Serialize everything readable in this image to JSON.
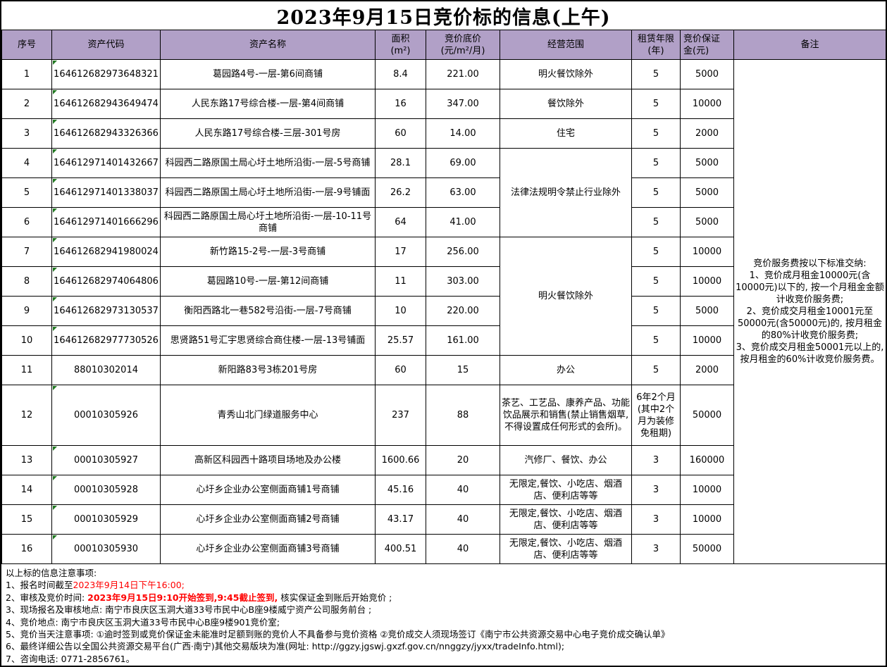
{
  "title": "2023年9月15日竞价标的信息(上午)",
  "colors": {
    "header_bg": "#b1a0c7",
    "grid_line": "#000000",
    "flag_green": "#217821",
    "highlight_red": "#ff0000"
  },
  "table": {
    "headers": [
      "序号",
      "资产代码",
      "资产名称",
      "面积\n(m²)",
      "竞价底价\n(元/m²/月)",
      "经营范围",
      "租赁年限\n(年)",
      "竞价保证\n金(元)",
      "备注"
    ],
    "rows": [
      {
        "no": "1",
        "code": "164612682973648321",
        "code_flag": true,
        "name": "葛园路4号-一层-第6间商铺",
        "area": "8.4",
        "price": "221.00",
        "scope": "明火餐饮除外",
        "scope_span": 1,
        "term": "5",
        "deposit": "5000",
        "tall": false
      },
      {
        "no": "2",
        "code": "164612682943649474",
        "code_flag": true,
        "name": "人民东路17号综合楼-一层-第4间商铺",
        "area": "16",
        "price": "347.00",
        "scope": "餐饮除外",
        "scope_span": 1,
        "term": "5",
        "deposit": "10000",
        "tall": false
      },
      {
        "no": "3",
        "code": "164612682943326366",
        "code_flag": true,
        "name": "人民东路17号综合楼-三层-301号房",
        "area": "60",
        "price": "14.00",
        "scope": "住宅",
        "scope_span": 1,
        "term": "5",
        "deposit": "2000",
        "tall": false
      },
      {
        "no": "4",
        "code": "164612971401432667",
        "code_flag": true,
        "name": "科园西二路原国土局心圩土地所沿街-一层-5号商铺",
        "area": "28.1",
        "price": "69.00",
        "scope": "法律法规明令禁止行业除外",
        "scope_span": 3,
        "term": "5",
        "deposit": "5000",
        "tall": false
      },
      {
        "no": "5",
        "code": "164612971401338037",
        "code_flag": true,
        "name": "科园西二路原国土局心圩土地所沿街-一层-9号铺面",
        "area": "26.2",
        "price": "63.00",
        "scope": null,
        "scope_span": 0,
        "term": "5",
        "deposit": "5000",
        "tall": false
      },
      {
        "no": "6",
        "code": "164612971401666296",
        "code_flag": true,
        "name": "科园西二路原国土局心圩土地所沿街-一层-10-11号商铺",
        "area": "64",
        "price": "41.00",
        "scope": null,
        "scope_span": 0,
        "term": "5",
        "deposit": "5000",
        "tall": false
      },
      {
        "no": "7",
        "code": "164612682941980024",
        "code_flag": true,
        "name": "新竹路15-2号-一层-3号商铺",
        "area": "17",
        "price": "256.00",
        "scope": "明火餐饮除外",
        "scope_span": 4,
        "term": "5",
        "deposit": "10000",
        "tall": false
      },
      {
        "no": "8",
        "code": "164612682974064806",
        "code_flag": true,
        "name": "葛园路10号-一层-第12间商铺",
        "area": "11",
        "price": "303.00",
        "scope": null,
        "scope_span": 0,
        "term": "5",
        "deposit": "10000",
        "tall": false
      },
      {
        "no": "9",
        "code": "164612682973130537",
        "code_flag": true,
        "name": "衡阳西路北一巷582号沿街-一层-7号商铺",
        "area": "10",
        "price": "220.00",
        "scope": null,
        "scope_span": 0,
        "term": "5",
        "deposit": "5000",
        "tall": false
      },
      {
        "no": "10",
        "code": "164612682977730526",
        "code_flag": true,
        "name": "思贤路51号汇宇思贤综合商住楼-一层-13号铺面",
        "area": "25.57",
        "price": "161.00",
        "scope": null,
        "scope_span": 0,
        "term": "5",
        "deposit": "10000",
        "tall": false
      },
      {
        "no": "11",
        "code": "88010302014",
        "code_flag": false,
        "name": "新阳路83号3栋201号房",
        "area": "60",
        "price": "15",
        "scope": "办公",
        "scope_span": 1,
        "term": "5",
        "deposit": "2000",
        "tall": false
      },
      {
        "no": "12",
        "code": "00010305926",
        "code_flag": true,
        "name": "青秀山北门绿道服务中心",
        "area": "237",
        "price": "88",
        "scope": "茶艺、工艺品、康养产品、功能饮品展示和销售(禁止销售烟草,不得设置成任何形式的会所)。",
        "scope_span": 1,
        "term": "6年2个月(其中2个月为装修免租期)",
        "deposit": "50000",
        "tall": true
      },
      {
        "no": "13",
        "code": "00010305927",
        "code_flag": true,
        "name": "高新区科园西十路项目场地及办公楼",
        "area": "1600.66",
        "price": "20",
        "scope": "汽修厂、餐饮、办公",
        "scope_span": 1,
        "term": "3",
        "deposit": "160000",
        "tall": false
      },
      {
        "no": "14",
        "code": "00010305928",
        "code_flag": true,
        "name": "心圩乡企业办公室侧面商铺1号商铺",
        "area": "45.16",
        "price": "40",
        "scope": "无限定,餐饮、小吃店、烟酒店、便利店等等",
        "scope_span": 1,
        "term": "3",
        "deposit": "10000",
        "tall": false
      },
      {
        "no": "15",
        "code": "00010305929",
        "code_flag": true,
        "name": "心圩乡企业办公室侧面商铺2号商铺",
        "area": "43.17",
        "price": "40",
        "scope": "无限定,餐饮、小吃店、烟酒店、便利店等等",
        "scope_span": 1,
        "term": "3",
        "deposit": "10000",
        "tall": false
      },
      {
        "no": "16",
        "code": "00010305930",
        "code_flag": true,
        "name": "心圩乡企业办公室侧面商铺3号商铺",
        "area": "400.51",
        "price": "40",
        "scope": "无限定,餐饮、小吃店、烟酒店、便利店等等",
        "scope_span": 1,
        "term": "3",
        "deposit": "50000",
        "tall": false
      }
    ],
    "remark": "竞价服务费按以下标准交纳:\n1、竞价成月租金10000元(含10000元)以下的, 按一个月租金金额计收竞价服务费;\n2、竞价成交月租金10001元至50000元(含50000元)的, 按月租金的80%计收竞价服务费;\n3、竞价成交月租金50001元以上的,按月租金的60%计收竞价服务费。"
  },
  "notes": {
    "lines": [
      {
        "segments": [
          {
            "text": "以上标的信息注意事项:",
            "style": "plain"
          }
        ]
      },
      {
        "segments": [
          {
            "text": "1、报名时间截至",
            "style": "plain"
          },
          {
            "text": "2023年9月14日下午16:00;",
            "style": "red"
          }
        ]
      },
      {
        "segments": [
          {
            "text": "2、审核及竞价时间: ",
            "style": "plain"
          },
          {
            "text": "2023年9月15日9:10开始签到,9:45截止签到,",
            "style": "red-bold"
          },
          {
            "text": " 核实保证金到账后开始竞价 ;",
            "style": "plain"
          }
        ]
      },
      {
        "segments": [
          {
            "text": "3、现场报名及审核地点: 南宁市良庆区玉洞大道33号市民中心B座9楼威宁资产公司服务前台 ;",
            "style": "plain"
          }
        ]
      },
      {
        "segments": [
          {
            "text": "4、竞价地点: 南宁市良庆区玉洞大道33号市民中心B座9楼901竞价室;",
            "style": "plain"
          }
        ]
      },
      {
        "segments": [
          {
            "text": "5、竞价当天注意事项: ①逾时签到或竞价保证金未能准时足额到账的竞价人不具备参与竞价资格 ②竞价成交人须现场签订《南宁市公共资源交易中心电子竞价成交确认单》",
            "style": "plain"
          }
        ]
      },
      {
        "segments": [
          {
            "text": "6、最终详细公告以全国公共资源交易平台(广西·南宁)其他交易版块为准(网址: http://ggzy.jgswj.gxzf.gov.cn/nnggzy/jyxx/tradeInfo.html);",
            "style": "plain"
          }
        ]
      },
      {
        "segments": [
          {
            "text": "7、咨询电话:  0771-2856761。",
            "style": "plain"
          }
        ]
      }
    ]
  }
}
